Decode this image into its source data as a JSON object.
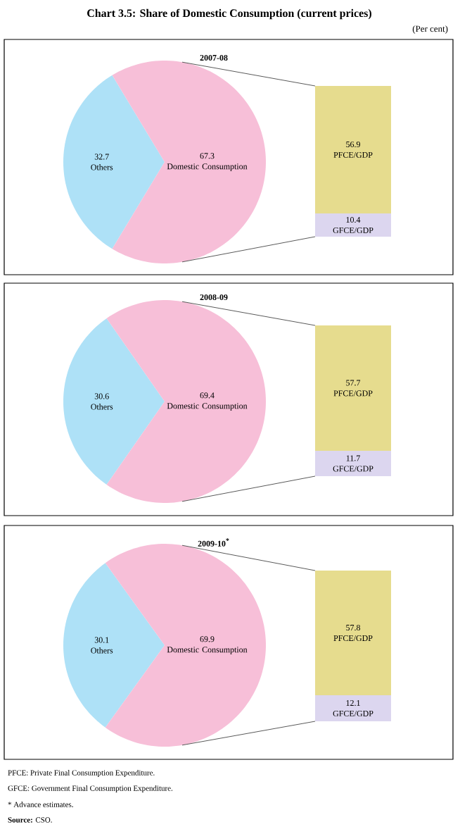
{
  "chart_data": [
    {
      "type": "pie",
      "title": "Chart 3.5: Share of Domestic Consumption (current prices)",
      "categories": [
        "Others",
        "Domestic Consumption"
      ],
      "values": [
        32.7,
        67.3
      ],
      "colors": [
        "#aee1f7",
        "#f7bfd8"
      ],
      "data_labels": true,
      "annotations": [
        "(Per cent)",
        "2007-08"
      ]
    },
    {
      "type": "bar",
      "categories": [
        null
      ],
      "stacked": true,
      "data_labels": true,
      "series": [
        {
          "name": "GFCE/GDP",
          "color": "#dcd6ef",
          "values": [
            10.4
          ]
        },
        {
          "name": "PFCE/GDP",
          "color": "#e6dc8e",
          "values": [
            56.9
          ]
        }
      ]
    },
    {
      "type": "pie",
      "title": "2008-09",
      "categories": [
        "Others",
        "Domestic Consumption"
      ],
      "values": [
        30.6,
        69.4
      ],
      "colors": [
        "#aee1f7",
        "#f7bfd8"
      ],
      "data_labels": true
    },
    {
      "type": "bar",
      "categories": [
        null
      ],
      "stacked": true,
      "data_labels": true,
      "series": [
        {
          "name": "GFCE/GDP",
          "color": "#dcd6ef",
          "values": [
            11.7
          ]
        },
        {
          "name": "PFCE/GDP",
          "color": "#e6dc8e",
          "values": [
            57.7
          ]
        }
      ]
    },
    {
      "type": "pie",
      "title": "2009-10$^{*}$",
      "categories": [
        "Others",
        "Domestic Consumption"
      ],
      "values": [
        30.1,
        69.9
      ],
      "colors": [
        "#aee1f7",
        "#f7bfd8"
      ],
      "data_labels": true
    },
    {
      "type": "bar",
      "categories": [
        null
      ],
      "stacked": true,
      "data_labels": true,
      "series": [
        {
          "name": "GFCE/GDP",
          "color": "#dcd6ef",
          "values": [
            12.1
          ]
        },
        {
          "name": "PFCE/GDP",
          "color": "#e6dc8e",
          "values": [
            57.8
          ]
        }
      ],
      "annotations": [
        "PFCE: Private Final Consumption Expenditure.",
        "GFCE: Government Final Consumption Expenditure.",
        "* Advance estimates.",
        "**Source:** CSO."
      ]
    }
  ]
}
